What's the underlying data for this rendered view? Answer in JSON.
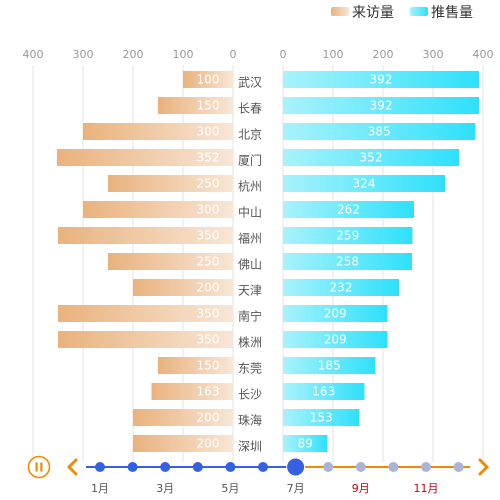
{
  "chart_data": {
    "type": "bar",
    "layout": "mirrored-horizontal",
    "legend_position": "top-right",
    "grid": true,
    "left_axis": {
      "ticks": [
        "400",
        "300",
        "200",
        "100",
        "0"
      ],
      "range": [
        0,
        400
      ]
    },
    "right_axis": {
      "ticks": [
        "0",
        "100",
        "200",
        "300",
        "400"
      ],
      "range": [
        0,
        400
      ]
    },
    "categories": [
      "武汉",
      "长春",
      "北京",
      "厦门",
      "杭州",
      "中山",
      "福州",
      "佛山",
      "天津",
      "南宁",
      "株洲",
      "东莞",
      "长沙",
      "珠海",
      "深圳"
    ],
    "series": [
      {
        "name": "来访量",
        "side": "left",
        "color_from": "#e9b27d",
        "color_to": "#f8e6d6",
        "values": [
          100,
          150,
          300,
          352,
          250,
          300,
          350,
          250,
          200,
          350,
          350,
          150,
          163,
          200,
          200
        ]
      },
      {
        "name": "推售量",
        "side": "right",
        "color_from": "#a9f2fb",
        "color_to": "#2ee0fb",
        "values": [
          392,
          392,
          385,
          352,
          324,
          262,
          259,
          258,
          232,
          209,
          209,
          185,
          163,
          153,
          89
        ]
      }
    ]
  },
  "timeline": {
    "play_icon": "pause-icon",
    "prev_icon": "chevron-left-icon",
    "next_icon": "chevron-right-icon",
    "current_index": 6,
    "point_count": 12,
    "labels": [
      {
        "index": 0,
        "text": "1月",
        "highlight": false
      },
      {
        "index": 2,
        "text": "3月",
        "highlight": false
      },
      {
        "index": 4,
        "text": "5月",
        "highlight": false
      },
      {
        "index": 6,
        "text": "7月",
        "highlight": false
      },
      {
        "index": 8,
        "text": "9月",
        "highlight": true
      },
      {
        "index": 10,
        "text": "11月",
        "highlight": true
      }
    ],
    "colors": {
      "passed": "#3560e0",
      "current": "#3560e0",
      "future": "#a9b4d6",
      "line_passed": "#3560e0",
      "line_future": "#f08a00",
      "controls": "#f08a00",
      "highlight_label": "#cc0000"
    }
  }
}
